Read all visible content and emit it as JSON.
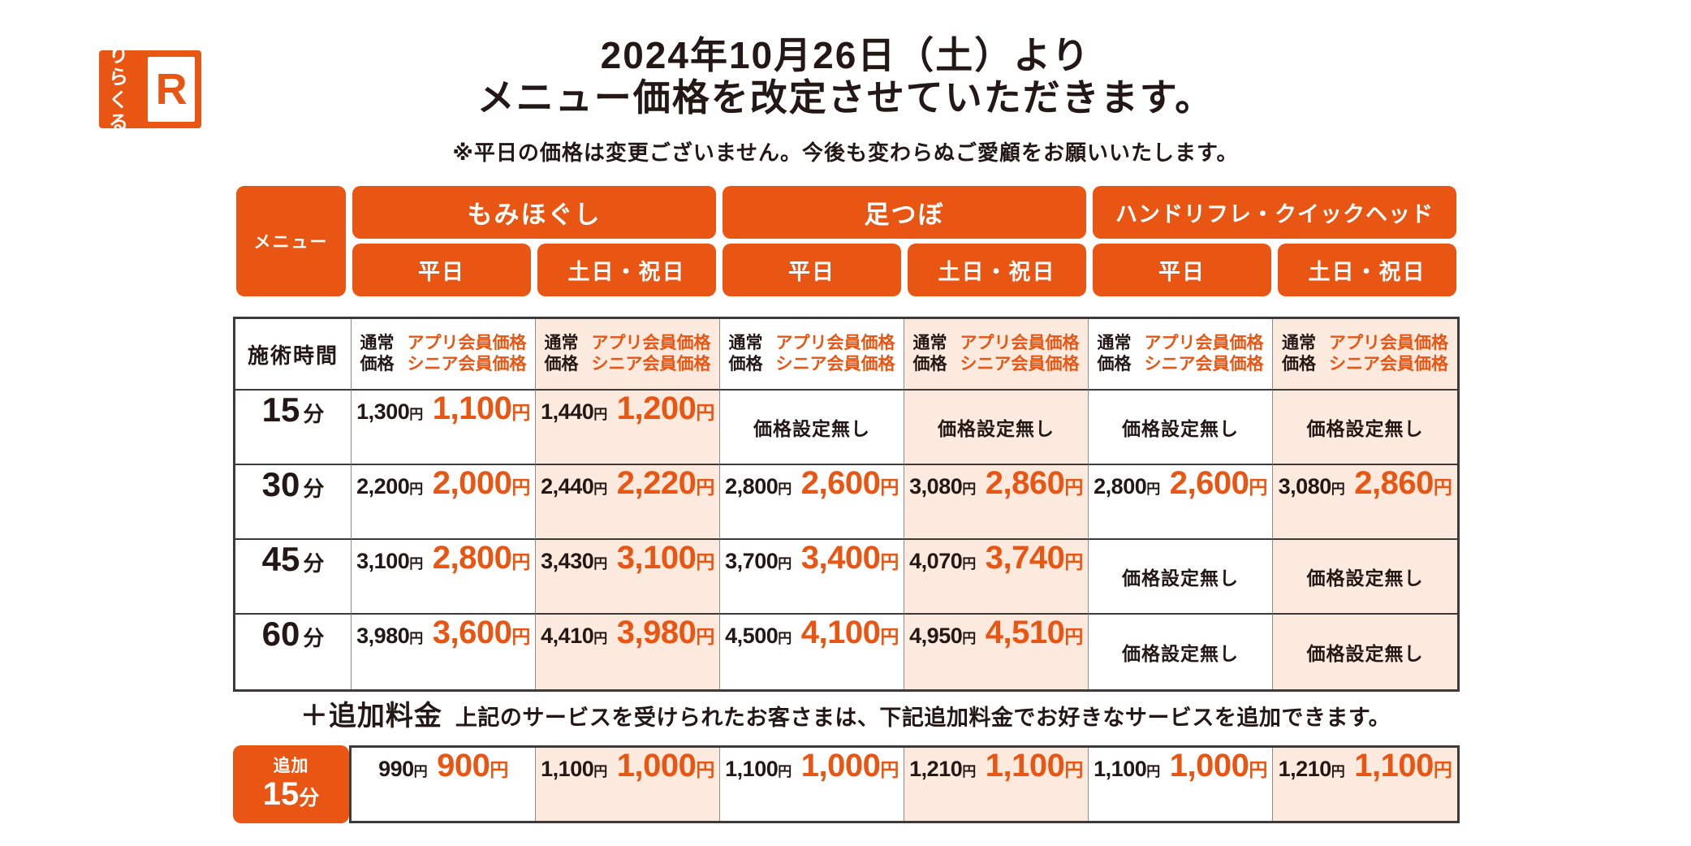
{
  "colors": {
    "orange": "#e95513",
    "peach": "#fbeadd",
    "ink": "#231815"
  },
  "logo": {
    "kana_line1": "りら",
    "kana_line2": "くる",
    "r_letter": "R"
  },
  "header": {
    "title_line1": "2024年10月26日（土）より",
    "title_line2": "メニュー価格を改定させていただきます。",
    "note": "※平日の価格は変更ございません。今後も変わらぬご愛顧をお願いいたします。"
  },
  "menu_header": {
    "menu_label": "メニュー",
    "categories": [
      {
        "label": "もみほぐし"
      },
      {
        "label": "足つぼ"
      },
      {
        "label": "ハンドリフレ・クイックヘッド"
      }
    ],
    "weekday_label": "平日",
    "weekend_label": "土日・祝日"
  },
  "price_table": {
    "time_header": "施術時間",
    "normal_label_line1": "通常",
    "normal_label_line2": "価格",
    "member_label_line1": "アプリ会員価格",
    "member_label_line2": "シニア会員価格",
    "no_price_label": "価格設定無し",
    "yen_suffix": "円",
    "minute_suffix": "分",
    "rows": [
      {
        "time": "15",
        "cells": [
          {
            "normal": "1,300",
            "member": "1,100"
          },
          {
            "normal": "1,440",
            "member": "1,200"
          },
          {
            "no_price": true
          },
          {
            "no_price": true
          },
          {
            "no_price": true
          },
          {
            "no_price": true
          }
        ]
      },
      {
        "time": "30",
        "cells": [
          {
            "normal": "2,200",
            "member": "2,000"
          },
          {
            "normal": "2,440",
            "member": "2,220"
          },
          {
            "normal": "2,800",
            "member": "2,600"
          },
          {
            "normal": "3,080",
            "member": "2,860"
          },
          {
            "normal": "2,800",
            "member": "2,600"
          },
          {
            "normal": "3,080",
            "member": "2,860"
          }
        ]
      },
      {
        "time": "45",
        "cells": [
          {
            "normal": "3,100",
            "member": "2,800"
          },
          {
            "normal": "3,430",
            "member": "3,100"
          },
          {
            "normal": "3,700",
            "member": "3,400"
          },
          {
            "normal": "4,070",
            "member": "3,740"
          },
          {
            "no_price": true
          },
          {
            "no_price": true
          }
        ]
      },
      {
        "time": "60",
        "cells": [
          {
            "normal": "3,980",
            "member": "3,600"
          },
          {
            "normal": "4,410",
            "member": "3,980"
          },
          {
            "normal": "4,500",
            "member": "4,100"
          },
          {
            "normal": "4,950",
            "member": "4,510"
          },
          {
            "no_price": true
          },
          {
            "no_price": true
          }
        ]
      }
    ]
  },
  "addon": {
    "heading": "＋追加料金",
    "description": "上記のサービスを受けられたお客さまは、下記追加料金でお好きなサービスを追加できます。",
    "time_label_small": "追加",
    "time_value": "15",
    "cells": [
      {
        "normal": "990",
        "member": "900"
      },
      {
        "normal": "1,100",
        "member": "1,000"
      },
      {
        "normal": "1,100",
        "member": "1,000"
      },
      {
        "normal": "1,210",
        "member": "1,100"
      },
      {
        "normal": "1,100",
        "member": "1,000"
      },
      {
        "normal": "1,210",
        "member": "1,100"
      }
    ]
  }
}
